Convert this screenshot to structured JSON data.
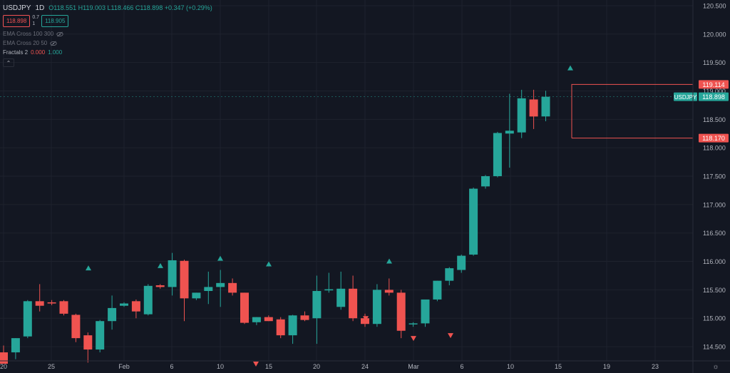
{
  "legend": {
    "symbol": "USDJPY",
    "interval": "1D",
    "ohlc": "O118.551 H119.003 L118.466 C118.898 +0.347 (+0.29%)",
    "sell_price": "118.898",
    "spread_top": "0.7",
    "spread_bottom": "1",
    "buy_price": "118.905",
    "indicators": [
      {
        "label": "EMA Cross 100 300",
        "active": false
      },
      {
        "label": "EMA Cross 20 50",
        "active": false
      }
    ],
    "fractals": {
      "label": "Fractals 2",
      "v1": "0.000",
      "v2": "1.000"
    },
    "collapse_icon": "chevron-up-icon"
  },
  "colors": {
    "bg": "#131722",
    "up": "#26a69a",
    "down": "#ef5350",
    "grid": "#1e222d",
    "axis_text": "#b2b5be"
  },
  "chart_data": {
    "type": "candlestick",
    "symbol": "USDJPY",
    "interval": "1D",
    "ylim": [
      114.25,
      120.6
    ],
    "y_ticks": [
      "114.500",
      "115.000",
      "115.500",
      "116.000",
      "116.500",
      "117.000",
      "117.500",
      "118.000",
      "118.500",
      "119.000",
      "119.500",
      "120.000",
      "120.500"
    ],
    "x_ticks": [
      "20",
      "25",
      "Feb",
      "6",
      "10",
      "15",
      "20",
      "24",
      "Mar",
      "6",
      "10",
      "15",
      "19",
      "23"
    ],
    "candles": [
      {
        "o": 114.4,
        "h": 114.52,
        "l": 114.2,
        "c": 114.2
      },
      {
        "o": 114.4,
        "h": 114.65,
        "l": 114.28,
        "c": 114.65
      },
      {
        "o": 114.68,
        "h": 115.32,
        "l": 114.65,
        "c": 115.3
      },
      {
        "o": 115.3,
        "h": 115.6,
        "l": 115.12,
        "c": 115.22
      },
      {
        "o": 115.28,
        "h": 115.32,
        "l": 115.23,
        "c": 115.26
      },
      {
        "o": 115.3,
        "h": 115.32,
        "l": 115.05,
        "c": 115.08
      },
      {
        "o": 115.06,
        "h": 115.08,
        "l": 114.58,
        "c": 114.65
      },
      {
        "o": 114.7,
        "h": 114.75,
        "l": 114.22,
        "c": 114.45
      },
      {
        "o": 114.45,
        "h": 114.97,
        "l": 114.4,
        "c": 114.95
      },
      {
        "o": 114.95,
        "h": 115.4,
        "l": 114.8,
        "c": 115.18
      },
      {
        "o": 115.22,
        "h": 115.28,
        "l": 115.2,
        "c": 115.26
      },
      {
        "o": 115.3,
        "h": 115.33,
        "l": 115.0,
        "c": 115.12
      },
      {
        "o": 115.07,
        "h": 115.6,
        "l": 115.05,
        "c": 115.57
      },
      {
        "o": 115.58,
        "h": 115.6,
        "l": 115.52,
        "c": 115.55
      },
      {
        "o": 115.55,
        "h": 116.15,
        "l": 115.4,
        "c": 116.02
      },
      {
        "o": 116.01,
        "h": 116.03,
        "l": 114.95,
        "c": 115.35
      },
      {
        "o": 115.35,
        "h": 115.45,
        "l": 115.32,
        "c": 115.45
      },
      {
        "o": 115.48,
        "h": 115.82,
        "l": 115.25,
        "c": 115.55
      },
      {
        "o": 115.55,
        "h": 115.85,
        "l": 115.2,
        "c": 115.62
      },
      {
        "o": 115.62,
        "h": 115.7,
        "l": 115.4,
        "c": 115.45
      },
      {
        "o": 115.45,
        "h": 115.45,
        "l": 114.9,
        "c": 114.92
      },
      {
        "o": 114.93,
        "h": 115.02,
        "l": 114.88,
        "c": 115.02
      },
      {
        "o": 115.02,
        "h": 115.05,
        "l": 114.95,
        "c": 114.95
      },
      {
        "o": 114.98,
        "h": 115.02,
        "l": 114.65,
        "c": 114.7
      },
      {
        "o": 114.7,
        "h": 115.06,
        "l": 114.55,
        "c": 115.05
      },
      {
        "o": 115.05,
        "h": 115.12,
        "l": 114.95,
        "c": 114.97
      },
      {
        "o": 115.0,
        "h": 115.75,
        "l": 114.55,
        "c": 115.48
      },
      {
        "o": 115.49,
        "h": 115.8,
        "l": 115.45,
        "c": 115.51
      },
      {
        "o": 115.2,
        "h": 115.82,
        "l": 115.15,
        "c": 115.52
      },
      {
        "o": 115.52,
        "h": 115.75,
        "l": 114.95,
        "c": 115.0
      },
      {
        "o": 115.0,
        "h": 115.08,
        "l": 114.85,
        "c": 114.9
      },
      {
        "o": 114.9,
        "h": 115.6,
        "l": 114.85,
        "c": 115.5
      },
      {
        "o": 115.5,
        "h": 115.7,
        "l": 115.4,
        "c": 115.45
      },
      {
        "o": 115.45,
        "h": 115.5,
        "l": 114.65,
        "c": 114.78
      },
      {
        "o": 114.9,
        "h": 114.93,
        "l": 114.85,
        "c": 114.91
      },
      {
        "o": 114.91,
        "h": 115.33,
        "l": 114.85,
        "c": 115.33
      },
      {
        "o": 115.33,
        "h": 115.66,
        "l": 115.3,
        "c": 115.66
      },
      {
        "o": 115.66,
        "h": 115.9,
        "l": 115.58,
        "c": 115.88
      },
      {
        "o": 115.85,
        "h": 116.12,
        "l": 115.8,
        "c": 116.1
      },
      {
        "o": 116.12,
        "h": 117.3,
        "l": 116.1,
        "c": 117.28
      },
      {
        "o": 117.32,
        "h": 117.52,
        "l": 117.28,
        "c": 117.5
      },
      {
        "o": 117.5,
        "h": 118.28,
        "l": 117.48,
        "c": 118.26
      },
      {
        "o": 118.25,
        "h": 118.95,
        "l": 117.65,
        "c": 118.3
      },
      {
        "o": 118.27,
        "h": 119.02,
        "l": 118.17,
        "c": 118.87
      },
      {
        "o": 118.85,
        "h": 119.02,
        "l": 118.33,
        "c": 118.55
      },
      {
        "o": 118.551,
        "h": 119.003,
        "l": 118.466,
        "c": 118.898
      }
    ],
    "fractals_up": [
      114.52,
      115.88,
      115.92,
      116.05,
      115.95,
      116.0,
      119.4
    ],
    "fractals_down": [
      114.2,
      115.0,
      114.65,
      114.7
    ],
    "fractal_high_level": 119.114,
    "fractal_low_level": 118.17,
    "last_price_label": "USDJPY",
    "last_price": 118.898,
    "level_labels": [
      "119.114",
      "118.170",
      "118.898"
    ]
  }
}
